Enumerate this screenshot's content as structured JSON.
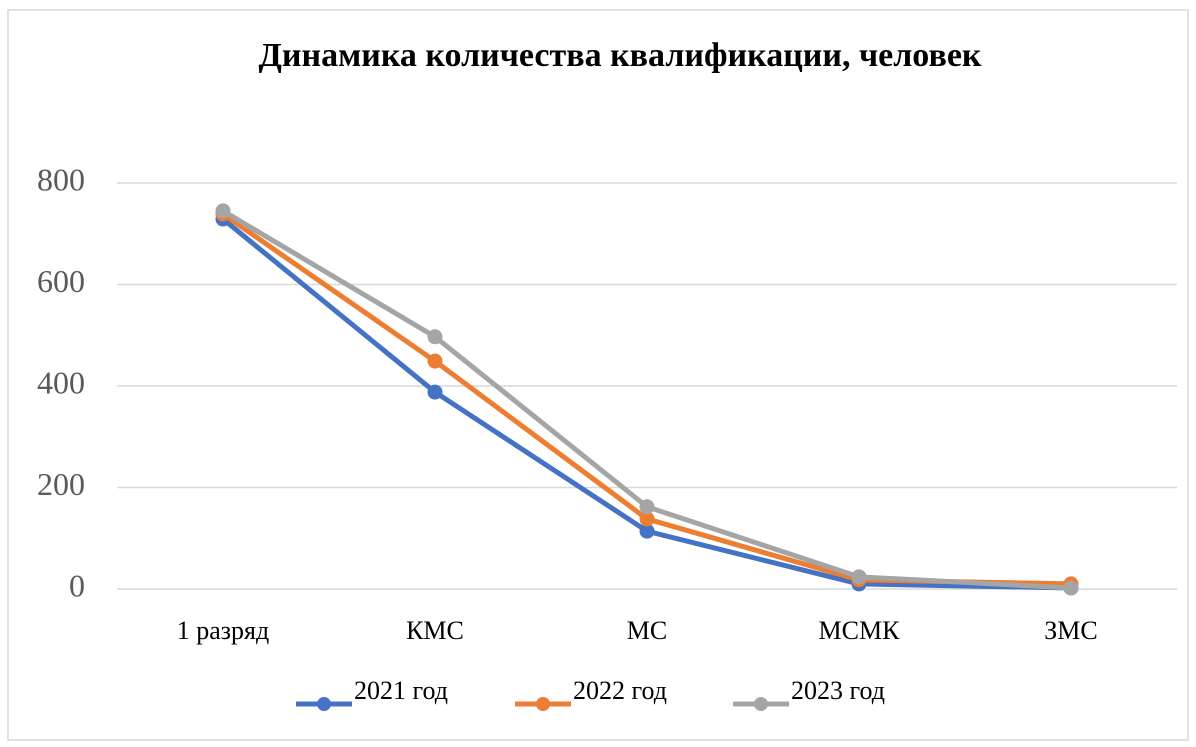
{
  "chart_data": {
    "type": "line",
    "title": "Динамика количества квалификации, человек",
    "categories": [
      "1 разряд",
      "КМС",
      "МС",
      "МСМК",
      "ЗМС"
    ],
    "series": [
      {
        "name": "2021 год",
        "color": "#4472c4",
        "values": [
          729,
          388,
          114,
          10,
          2
        ]
      },
      {
        "name": "2022 год",
        "color": "#ed7d31",
        "values": [
          739,
          449,
          138,
          18,
          10
        ]
      },
      {
        "name": "2023 год",
        "color": "#a5a5a5",
        "values": [
          745,
          497,
          162,
          24,
          2
        ]
      }
    ],
    "ylim": [
      0,
      800
    ],
    "yticks": [
      0,
      200,
      400,
      600,
      800
    ],
    "grid": true,
    "legend": "bottom"
  }
}
